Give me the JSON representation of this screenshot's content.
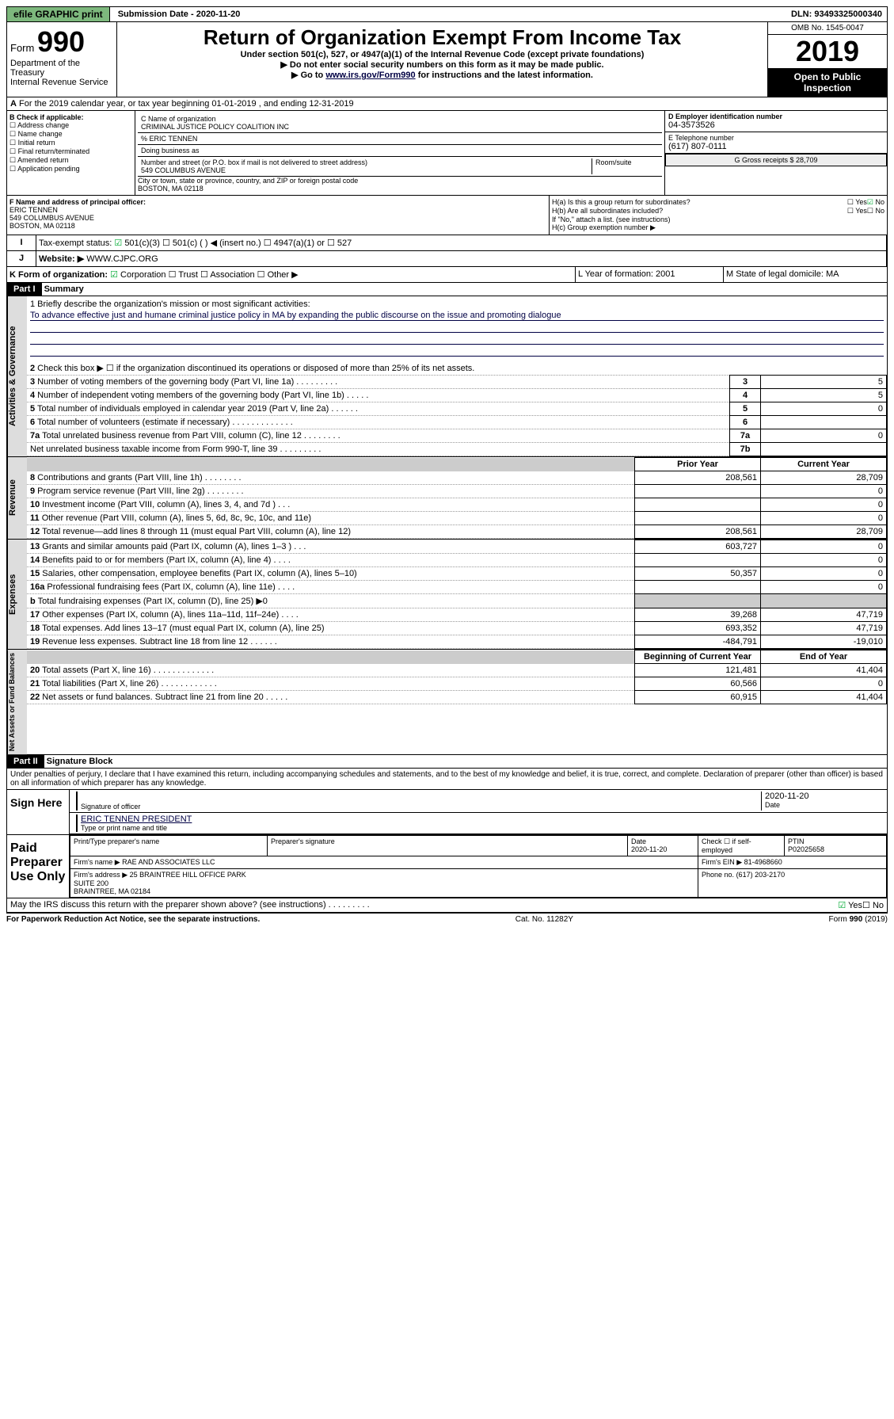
{
  "topbar": {
    "efile": "efile GRAPHIC print",
    "subdate_label": "Submission Date - 2020-11-20",
    "dln": "DLN: 93493325000340"
  },
  "header": {
    "form_label": "Form",
    "form_num": "990",
    "dept": "Department of the Treasury",
    "irs": "Internal Revenue Service",
    "title": "Return of Organization Exempt From Income Tax",
    "sub1": "Under section 501(c), 527, or 4947(a)(1) of the Internal Revenue Code (except private foundations)",
    "sub2": "Do not enter social security numbers on this form as it may be made public.",
    "sub3_pre": "Go to ",
    "sub3_link": "www.irs.gov/Form990",
    "sub3_post": " for instructions and the latest information.",
    "omb": "OMB No. 1545-0047",
    "year": "2019",
    "open": "Open to Public Inspection"
  },
  "periodA": "For the 2019 calendar year, or tax year beginning 01-01-2019   , and ending 12-31-2019",
  "B": {
    "hdr": "B Check if applicable:",
    "items": [
      "Address change",
      "Name change",
      "Initial return",
      "Final return/terminated",
      "Amended return",
      "Application pending"
    ]
  },
  "C": {
    "name_lbl": "C Name of organization",
    "name": "CRIMINAL JUSTICE POLICY COALITION INC",
    "care_lbl": "% ERIC TENNEN",
    "dba_lbl": "Doing business as",
    "addr_lbl": "Number and street (or P.O. box if mail is not delivered to street address)",
    "room_lbl": "Room/suite",
    "addr": "549 COLUMBUS AVENUE",
    "city_lbl": "City or town, state or province, country, and ZIP or foreign postal code",
    "city": "BOSTON, MA  02118"
  },
  "D": {
    "lbl": "D Employer identification number",
    "val": "04-3573526"
  },
  "E": {
    "lbl": "E Telephone number",
    "val": "(617) 807-0111"
  },
  "G": {
    "lbl": "G Gross receipts $ 28,709"
  },
  "F": {
    "lbl": "F  Name and address of principal officer:",
    "name": "ERIC TENNEN",
    "addr": "549 COLUMBUS AVENUE",
    "city": "BOSTON, MA  02118"
  },
  "H": {
    "a": "H(a)  Is this a group return for subordinates?",
    "b": "H(b)  Are all subordinates included?",
    "b_note": "If \"No,\" attach a list. (see instructions)",
    "c": "H(c)  Group exemption number ▶",
    "yes": "Yes",
    "no": "No"
  },
  "I": {
    "lbl": "Tax-exempt status:",
    "opts": [
      "501(c)(3)",
      "501(c) (  ) ◀ (insert no.)",
      "4947(a)(1) or",
      "527"
    ]
  },
  "J": {
    "lbl": "Website: ▶",
    "val": "WWW.CJPC.ORG"
  },
  "K": {
    "lbl": "K Form of organization:",
    "opts": [
      "Corporation",
      "Trust",
      "Association",
      "Other ▶"
    ]
  },
  "L": {
    "lbl": "L Year of formation: 2001"
  },
  "M": {
    "lbl": "M State of legal domicile: MA"
  },
  "partI": {
    "tag": "Part I",
    "title": "Summary"
  },
  "mission": {
    "lbl": "1  Briefly describe the organization's mission or most significant activities:",
    "text": "To advance effective just and humane criminal justice policy in MA by expanding the public discourse on the issue and promoting dialogue"
  },
  "gov_lines": [
    {
      "n": "2",
      "t": "Check this box ▶ ☐  if the organization discontinued its operations or disposed of more than 25% of its net assets."
    },
    {
      "n": "3",
      "t": "Number of voting members of the governing body (Part VI, line 1a)  .   .   .   .   .   .   .   .   .",
      "box": "3",
      "v": "5"
    },
    {
      "n": "4",
      "t": "Number of independent voting members of the governing body (Part VI, line 1b)  .   .   .   .   .",
      "box": "4",
      "v": "5"
    },
    {
      "n": "5",
      "t": "Total number of individuals employed in calendar year 2019 (Part V, line 2a)  .   .   .   .   .   .",
      "box": "5",
      "v": "0"
    },
    {
      "n": "6",
      "t": "Total number of volunteers (estimate if necessary)  .   .   .   .   .   .   .   .   .   .   .   .   .",
      "box": "6",
      "v": ""
    },
    {
      "n": "7a",
      "t": "Total unrelated business revenue from Part VIII, column (C), line 12  .   .   .   .   .   .   .   .",
      "box": "7a",
      "v": "0"
    },
    {
      "n": "",
      "t": "Net unrelated business taxable income from Form 990-T, line 39  .   .   .   .   .   .   .   .   .",
      "box": "7b",
      "v": ""
    }
  ],
  "cols": {
    "prior": "Prior Year",
    "current": "Current Year",
    "begin": "Beginning of Current Year",
    "end": "End of Year"
  },
  "rev": [
    {
      "n": "8",
      "t": "Contributions and grants (Part VIII, line 1h)  .   .   .   .   .   .   .   .",
      "p": "208,561",
      "c": "28,709"
    },
    {
      "n": "9",
      "t": "Program service revenue (Part VIII, line 2g)  .   .   .   .   .   .   .   .",
      "p": "",
      "c": "0"
    },
    {
      "n": "10",
      "t": "Investment income (Part VIII, column (A), lines 3, 4, and 7d )  .   .   .",
      "p": "",
      "c": "0"
    },
    {
      "n": "11",
      "t": "Other revenue (Part VIII, column (A), lines 5, 6d, 8c, 9c, 10c, and 11e)",
      "p": "",
      "c": "0"
    },
    {
      "n": "12",
      "t": "Total revenue—add lines 8 through 11 (must equal Part VIII, column (A), line 12)",
      "p": "208,561",
      "c": "28,709"
    }
  ],
  "exp": [
    {
      "n": "13",
      "t": "Grants and similar amounts paid (Part IX, column (A), lines 1–3 )  .   .   .",
      "p": "603,727",
      "c": "0"
    },
    {
      "n": "14",
      "t": "Benefits paid to or for members (Part IX, column (A), line 4)  .   .   .   .",
      "p": "",
      "c": "0"
    },
    {
      "n": "15",
      "t": "Salaries, other compensation, employee benefits (Part IX, column (A), lines 5–10)",
      "p": "50,357",
      "c": "0"
    },
    {
      "n": "16a",
      "t": "Professional fundraising fees (Part IX, column (A), line 11e)  .   .   .   .",
      "p": "",
      "c": "0"
    },
    {
      "n": "b",
      "t": "Total fundraising expenses (Part IX, column (D), line 25) ▶0",
      "p": "shade",
      "c": "shade"
    },
    {
      "n": "17",
      "t": "Other expenses (Part IX, column (A), lines 11a–11d, 11f–24e)  .   .   .   .",
      "p": "39,268",
      "c": "47,719"
    },
    {
      "n": "18",
      "t": "Total expenses. Add lines 13–17 (must equal Part IX, column (A), line 25)",
      "p": "693,352",
      "c": "47,719"
    },
    {
      "n": "19",
      "t": "Revenue less expenses. Subtract line 18 from line 12  .   .   .   .   .   .",
      "p": "-484,791",
      "c": "-19,010"
    }
  ],
  "net": [
    {
      "n": "20",
      "t": "Total assets (Part X, line 16)  .   .   .   .   .   .   .   .   .   .   .   .   .",
      "p": "121,481",
      "c": "41,404"
    },
    {
      "n": "21",
      "t": "Total liabilities (Part X, line 26)  .   .   .   .   .   .   .   .   .   .   .   .",
      "p": "60,566",
      "c": "0"
    },
    {
      "n": "22",
      "t": "Net assets or fund balances. Subtract line 21 from line 20  .   .   .   .   .",
      "p": "60,915",
      "c": "41,404"
    }
  ],
  "vtabs": {
    "gov": "Activities & Governance",
    "rev": "Revenue",
    "exp": "Expenses",
    "net": "Net Assets or Fund Balances"
  },
  "partII": {
    "tag": "Part II",
    "title": "Signature Block"
  },
  "perjury": "Under penalties of perjury, I declare that I have examined this return, including accompanying schedules and statements, and to the best of my knowledge and belief, it is true, correct, and complete. Declaration of preparer (other than officer) is based on all information of which preparer has any knowledge.",
  "sign": {
    "here": "Sign Here",
    "sig_lbl": "Signature of officer",
    "date_lbl": "Date",
    "date": "2020-11-20",
    "name": "ERIC TENNEN  PRESIDENT",
    "name_lbl": "Type or print name and title"
  },
  "paid": {
    "lbl": "Paid Preparer Use Only",
    "prep_name_lbl": "Print/Type preparer's name",
    "prep_sig_lbl": "Preparer's signature",
    "date_lbl": "Date",
    "date": "2020-11-20",
    "check_lbl": "Check ☐ if self-employed",
    "ptin_lbl": "PTIN",
    "ptin": "P02025658",
    "firm_name_lbl": "Firm's name    ▶",
    "firm_name": "RAE AND ASSOCIATES LLC",
    "firm_ein_lbl": "Firm's EIN ▶",
    "firm_ein": "81-4968660",
    "firm_addr_lbl": "Firm's address ▶",
    "firm_addr": "25 BRAINTREE HILL OFFICE PARK\nSUITE 200\nBRAINTREE, MA  02184",
    "phone_lbl": "Phone no.",
    "phone": "(617) 203-2170"
  },
  "discuss": "May the IRS discuss this return with the preparer shown above? (see instructions)   .   .   .   .   .   .   .   .   .",
  "footer": {
    "pra": "For Paperwork Reduction Act Notice, see the separate instructions.",
    "cat": "Cat. No. 11282Y",
    "form": "Form 990 (2019)"
  }
}
